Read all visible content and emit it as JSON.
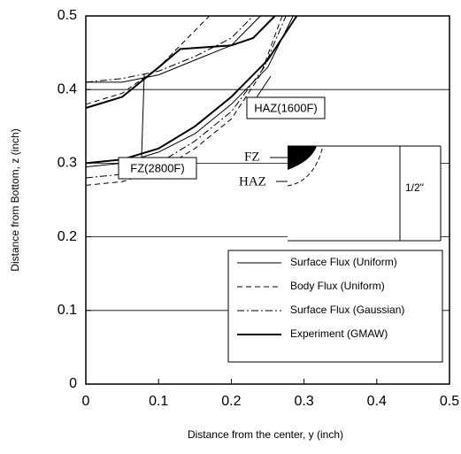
{
  "chart_data": {
    "type": "line",
    "x_label": "Distance from the center, y (inch)",
    "y_label": "Distance from Bottom, z (inch)",
    "xlim": [
      0,
      0.5
    ],
    "ylim": [
      0,
      0.5
    ],
    "xticks": [
      0,
      0.1,
      0.2,
      0.3,
      0.4,
      0.5
    ],
    "yticks": [
      0,
      0.1,
      0.2,
      0.3,
      0.4,
      0.5
    ],
    "grid": true,
    "legend": "lower right",
    "annotations": [
      "FZ(2800F)",
      "HAZ(1600F)",
      "FZ",
      "HAZ",
      "1/2\""
    ],
    "series": [
      {
        "name": "Surface Flux (Uniform)",
        "color": "#000",
        "style": "solid",
        "width": 1,
        "x": [
          0,
          0.05,
          0.1,
          0.15,
          0.2,
          0.24,
          null,
          0,
          0.05,
          0.1,
          0.15,
          0.2,
          0.25,
          0.285
        ],
        "values": [
          0.41,
          0.41,
          0.42,
          0.44,
          0.46,
          0.5,
          null,
          0.295,
          0.3,
          0.315,
          0.34,
          0.38,
          0.43,
          0.5
        ]
      },
      {
        "name": "Body Flux (Uniform)",
        "color": "#000",
        "style": "dashed",
        "width": 1,
        "x": [
          0,
          0.05,
          0.1,
          0.15,
          0.17,
          null,
          0,
          0.05,
          0.1,
          0.15,
          0.2,
          0.24,
          0.27
        ],
        "values": [
          0.38,
          0.395,
          0.43,
          0.48,
          0.5,
          null,
          0.27,
          0.275,
          0.29,
          0.32,
          0.36,
          0.42,
          0.5
        ]
      },
      {
        "name": "Surface Flux (Gaussian)",
        "color": "#000",
        "style": "dashdot",
        "width": 1,
        "x": [
          0,
          0.05,
          0.1,
          0.15,
          0.2,
          0.23,
          null,
          0,
          0.05,
          0.1,
          0.15,
          0.2,
          0.245,
          0.275
        ],
        "values": [
          0.41,
          0.415,
          0.425,
          0.445,
          0.47,
          0.5,
          null,
          0.28,
          0.285,
          0.3,
          0.33,
          0.37,
          0.43,
          0.5
        ]
      },
      {
        "name": "Experiment (GMAW)",
        "color": "#000",
        "style": "solid",
        "width": 2,
        "x": [
          0,
          0.05,
          0.1,
          0.13,
          0.2,
          0.23,
          0.26,
          null,
          0,
          0.05,
          0.1,
          0.15,
          0.2,
          0.25,
          0.29
        ],
        "values": [
          0.375,
          0.39,
          0.43,
          0.455,
          0.46,
          0.47,
          0.5,
          null,
          0.3,
          0.305,
          0.32,
          0.35,
          0.39,
          0.44,
          0.5
        ]
      }
    ]
  }
}
